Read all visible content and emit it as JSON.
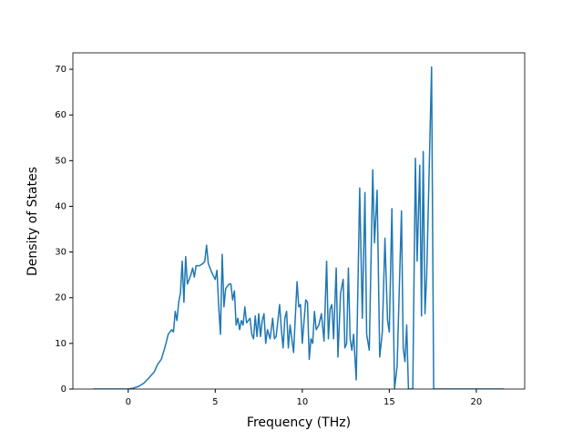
{
  "chart_data": {
    "type": "line",
    "xlabel": "Frequency (THz)",
    "ylabel": "Density of States",
    "xlim": [
      -3.18,
      22.78
    ],
    "ylim": [
      0,
      73.6
    ],
    "xticks": [
      0,
      5,
      10,
      15,
      20
    ],
    "yticks": [
      0,
      10,
      20,
      30,
      40,
      50,
      60,
      70
    ],
    "series": [
      {
        "color": "#1f77b4",
        "x": [
          -2,
          0,
          0.3,
          0.6,
          0.9,
          1.2,
          1.5,
          1.7,
          1.9,
          2.1,
          2.3,
          2.5,
          2.6,
          2.7,
          2.8,
          2.9,
          3.0,
          3.1,
          3.2,
          3.3,
          3.4,
          3.6,
          3.7,
          3.8,
          3.9,
          4.1,
          4.3,
          4.4,
          4.5,
          4.6,
          4.8,
          5.0,
          5.1,
          5.2,
          5.3,
          5.4,
          5.5,
          5.6,
          5.8,
          5.9,
          6.0,
          6.1,
          6.2,
          6.3,
          6.4,
          6.5,
          6.6,
          6.7,
          6.8,
          7.0,
          7.1,
          7.2,
          7.3,
          7.4,
          7.5,
          7.6,
          7.7,
          7.8,
          7.9,
          8.0,
          8.15,
          8.3,
          8.4,
          8.5,
          8.7,
          8.8,
          8.9,
          9.0,
          9.1,
          9.2,
          9.3,
          9.5,
          9.7,
          9.8,
          9.9,
          10.0,
          10.2,
          10.3,
          10.4,
          10.5,
          10.6,
          10.7,
          10.8,
          10.95,
          11.1,
          11.25,
          11.4,
          11.5,
          11.6,
          11.7,
          11.8,
          11.95,
          12.05,
          12.2,
          12.35,
          12.45,
          12.55,
          12.65,
          12.75,
          12.85,
          12.95,
          13.1,
          13.3,
          13.45,
          13.6,
          13.7,
          13.85,
          14.05,
          14.15,
          14.3,
          14.45,
          14.6,
          14.75,
          14.9,
          15.0,
          15.15,
          15.3,
          15.45,
          15.7,
          15.8,
          15.9,
          16.0,
          16.1,
          16.35,
          16.5,
          16.6,
          16.75,
          16.85,
          16.95,
          17.05,
          17.15,
          17.43,
          17.55,
          21.6
        ],
        "values": [
          0,
          0,
          0.2,
          0.6,
          1.3,
          2.5,
          3.8,
          5.5,
          6.5,
          9,
          12,
          13,
          12.5,
          17,
          15,
          19,
          21,
          28,
          19,
          29,
          23,
          25,
          26.5,
          24.5,
          27,
          27,
          27.5,
          28,
          31.5,
          27.5,
          25.5,
          24,
          26,
          18,
          12,
          29.5,
          18,
          22,
          23,
          23,
          19.5,
          21.5,
          14,
          15.5,
          13,
          15,
          14,
          18,
          14.5,
          15.5,
          12,
          11,
          16,
          11.5,
          16.5,
          11.5,
          15,
          16.5,
          10,
          13,
          11,
          15.5,
          11,
          11.5,
          18.5,
          13,
          9,
          15.5,
          17,
          9,
          14,
          8,
          23.5,
          18,
          18.5,
          10,
          19.5,
          19,
          6.5,
          11,
          10,
          17,
          13,
          14,
          16.5,
          10.5,
          28,
          11,
          17.5,
          18.5,
          11,
          26.5,
          7,
          21,
          24,
          9,
          10,
          26.5,
          11,
          8.5,
          12,
          2,
          44,
          15.5,
          43,
          12,
          8.5,
          48,
          32,
          43.5,
          7,
          12.5,
          33,
          15,
          12.5,
          39.5,
          0,
          5,
          39,
          9,
          6,
          14,
          0,
          0,
          50.5,
          28,
          49,
          16,
          52,
          16.5,
          25,
          70.5,
          0,
          0
        ]
      }
    ]
  }
}
